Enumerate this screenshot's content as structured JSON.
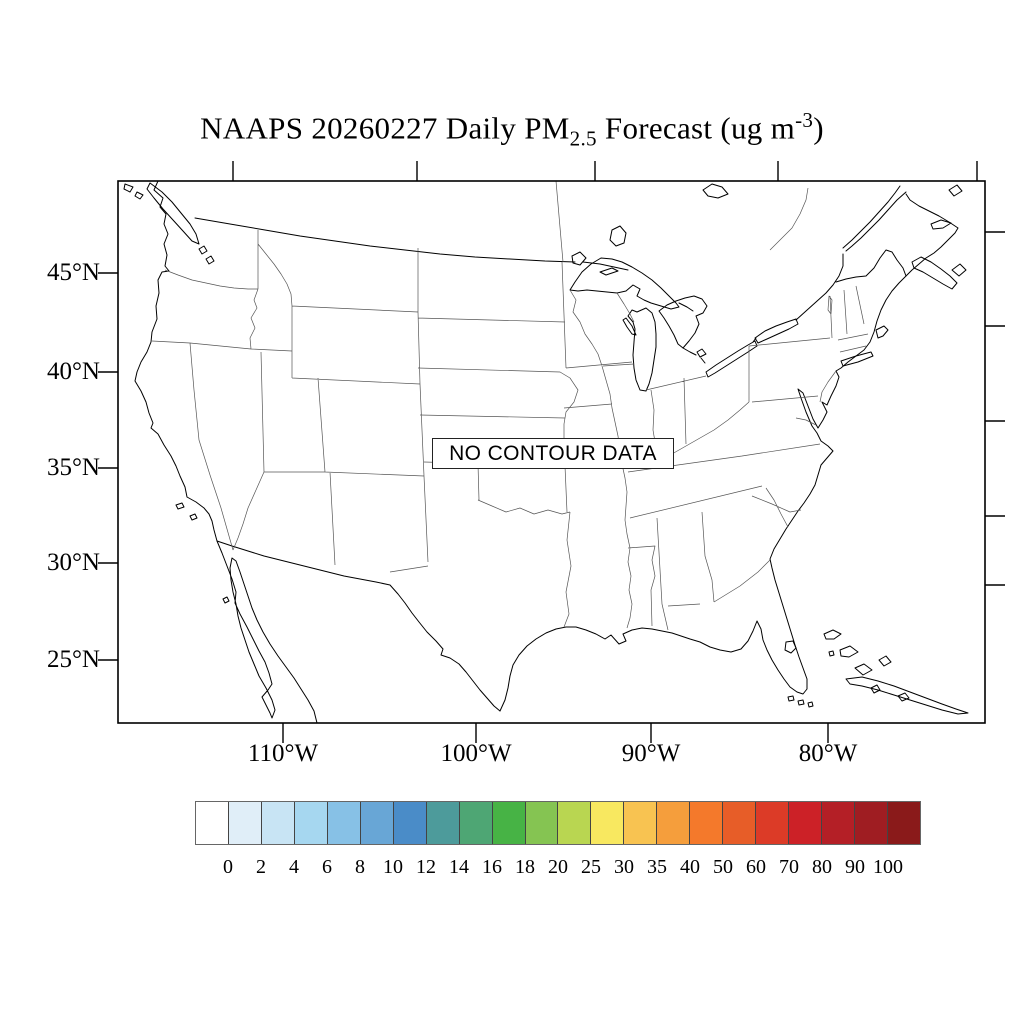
{
  "title": {
    "prefix": "NAAPS 20260227 Daily PM",
    "subscript": "2.5",
    "middle": " Forecast (ug m",
    "superscript": "-3",
    "suffix": ")"
  },
  "map": {
    "no_data_label": "NO CONTOUR DATA"
  },
  "axes": {
    "lat_ticks": [
      "45°N",
      "40°N",
      "35°N",
      "30°N",
      "25°N"
    ],
    "lon_ticks": [
      "110°W",
      "100°W",
      "90°W",
      "80°W"
    ]
  },
  "colorbar": {
    "labels": [
      "0",
      "2",
      "4",
      "6",
      "8",
      "10",
      "12",
      "14",
      "16",
      "18",
      "20",
      "25",
      "30",
      "35",
      "40",
      "50",
      "60",
      "70",
      "80",
      "90",
      "100"
    ],
    "colors": [
      "#ffffff",
      "#e0eef8",
      "#c8e4f4",
      "#a6d7f0",
      "#87c1e6",
      "#68a6d6",
      "#4a8cc8",
      "#4d9b9b",
      "#4ea674",
      "#47b345",
      "#85c452",
      "#b9d651",
      "#f8e860",
      "#f8c351",
      "#f59e3c",
      "#f4792b",
      "#e75d28",
      "#dc3b27",
      "#cc2127",
      "#b41f26",
      "#9f1d22",
      "#8a1a1a"
    ],
    "units": "ug m-3"
  }
}
